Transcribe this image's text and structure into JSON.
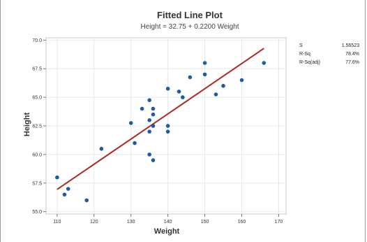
{
  "chart_data": {
    "type": "scatter",
    "title": "Fitted Line Plot",
    "subtitle": "Height = 32.75 + 0.2200 Weight",
    "xlabel": "Weight",
    "ylabel": "Height",
    "xlim": [
      107,
      172
    ],
    "ylim": [
      54.8,
      70.2
    ],
    "xticks": [
      110,
      120,
      130,
      140,
      150,
      160,
      170
    ],
    "yticks": [
      55.0,
      57.5,
      60.0,
      62.5,
      65.0,
      67.5,
      70.0
    ],
    "ytick_labels": [
      "55.0",
      "57.5",
      "60.0",
      "62.5",
      "65.0",
      "67.5",
      "70.0"
    ],
    "grid": true,
    "fit_line": {
      "intercept": 32.75,
      "slope": 0.22,
      "x_range": [
        110,
        166
      ],
      "color": "#b0281e"
    },
    "point_color": "#1f5ba5",
    "points": [
      {
        "x": 110,
        "y": 58.0
      },
      {
        "x": 112,
        "y": 56.5
      },
      {
        "x": 113,
        "y": 57.0
      },
      {
        "x": 118,
        "y": 56.0
      },
      {
        "x": 122,
        "y": 60.5
      },
      {
        "x": 130,
        "y": 62.75
      },
      {
        "x": 131,
        "y": 61.0
      },
      {
        "x": 133,
        "y": 64.0
      },
      {
        "x": 135,
        "y": 64.75
      },
      {
        "x": 135,
        "y": 63.0
      },
      {
        "x": 135,
        "y": 62.0
      },
      {
        "x": 135,
        "y": 60.0
      },
      {
        "x": 136,
        "y": 64.0
      },
      {
        "x": 136,
        "y": 63.5
      },
      {
        "x": 136,
        "y": 62.5
      },
      {
        "x": 136,
        "y": 59.5
      },
      {
        "x": 140,
        "y": 65.75
      },
      {
        "x": 140,
        "y": 62.5
      },
      {
        "x": 140,
        "y": 62.0
      },
      {
        "x": 143,
        "y": 65.5
      },
      {
        "x": 144,
        "y": 65.0
      },
      {
        "x": 146,
        "y": 66.75
      },
      {
        "x": 150,
        "y": 68.0
      },
      {
        "x": 150,
        "y": 67.0
      },
      {
        "x": 153,
        "y": 65.25
      },
      {
        "x": 155,
        "y": 66.0
      },
      {
        "x": 160,
        "y": 66.5
      },
      {
        "x": 166,
        "y": 68.0
      }
    ],
    "stats": [
      {
        "label": "S",
        "value": "1.56523"
      },
      {
        "label": "R-Sq",
        "value": "78.4%"
      },
      {
        "label": "R-Sq(adj)",
        "value": "77.6%"
      }
    ]
  }
}
